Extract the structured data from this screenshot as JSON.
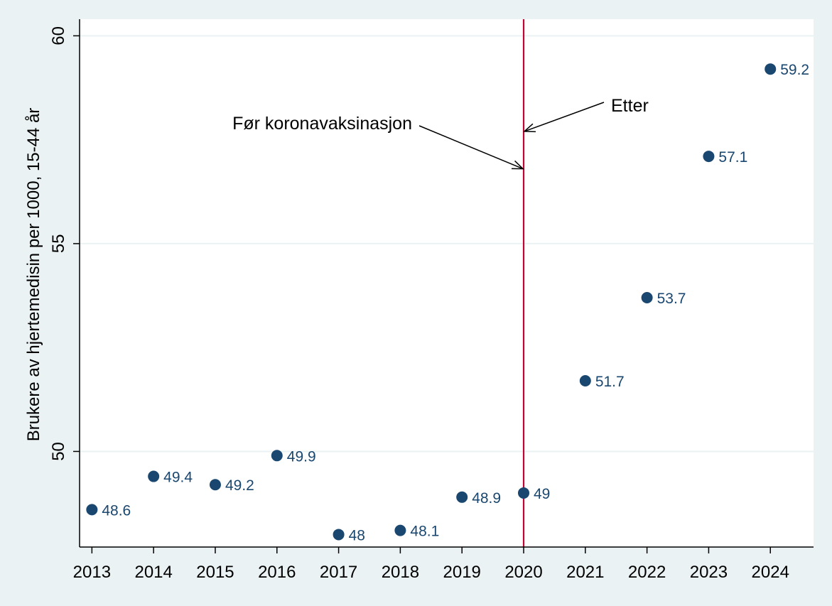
{
  "chart_data": {
    "type": "scatter",
    "title": "",
    "xlabel": "",
    "ylabel": "Brukere av hjertemedisin per 1000, 15-44 år",
    "x": [
      2013,
      2014,
      2015,
      2016,
      2017,
      2018,
      2019,
      2020,
      2021,
      2022,
      2023,
      2024
    ],
    "series": [
      {
        "values": [
          48.6,
          49.4,
          49.2,
          49.9,
          48,
          48.1,
          48.9,
          49,
          51.7,
          53.7,
          57.1,
          59.2
        ],
        "labels": [
          "48.6",
          "49.4",
          "49.2",
          "49.9",
          "48",
          "48.1",
          "48.9",
          "49",
          "51.7",
          "53.7",
          "57.1",
          "59.2"
        ],
        "color": "#1a476f"
      }
    ],
    "xlim": [
      2012.8,
      2024.7
    ],
    "ylim": [
      47.7,
      60.4
    ],
    "xticks": [
      "2013",
      "2014",
      "2015",
      "2016",
      "2017",
      "2018",
      "2019",
      "2020",
      "2021",
      "2022",
      "2023",
      "2024"
    ],
    "yticks": [
      "50",
      "55",
      "60"
    ],
    "grid": true,
    "vline": {
      "x": 2020,
      "color": "#c10534"
    },
    "annotations": [
      {
        "text": "Før koronavaksinasjon",
        "arrow_to": [
          2020,
          56.8
        ]
      },
      {
        "text": "Etter",
        "arrow_to": [
          2020,
          57.7
        ]
      }
    ],
    "colors": {
      "background": "#eaf2f3",
      "plot_background": "#ffffff",
      "grid": "#eaf2f3",
      "marker": "#1a476f",
      "vline": "#c10534"
    }
  }
}
